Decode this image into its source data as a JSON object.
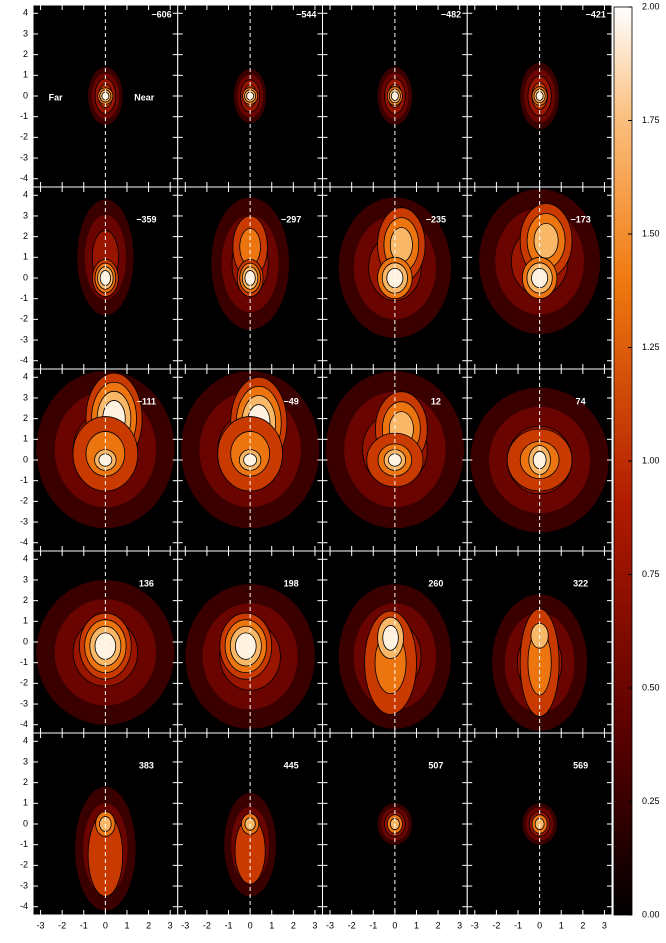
{
  "chart_data": {
    "type": "image",
    "panels": [
      "−606",
      "−544",
      "−482",
      "−421",
      "−359",
      "−297",
      "−235",
      "−173",
      "−111",
      "−49",
      "12",
      "74",
      "136",
      "198",
      "260",
      "322",
      "383",
      "445",
      "507",
      "569"
    ],
    "annotations": [
      "Far",
      "Near"
    ],
    "xlim": [
      -3.35,
      3.35
    ],
    "ylim": [
      -4.4,
      4.4
    ],
    "xticks": [
      -3,
      -2,
      -1,
      0,
      1,
      2,
      3
    ],
    "yticks": [
      -4,
      -3,
      -2,
      -1,
      0,
      1,
      2,
      3,
      4
    ],
    "colorbar": {
      "lim": [
        0,
        2
      ],
      "ticks": [
        {
          "value": 0,
          "label": "0.00"
        },
        {
          "value": 0.25,
          "label": "0.25"
        },
        {
          "value": 0.5,
          "label": "0.50"
        },
        {
          "value": 0.75,
          "label": "0.75"
        },
        {
          "value": 1,
          "label": "1.00"
        },
        {
          "value": 1.25,
          "label": "1.25"
        },
        {
          "value": 1.5,
          "label": "1.50"
        },
        {
          "value": 1.75,
          "label": "1.75"
        },
        {
          "value": 2,
          "label": "2.00"
        }
      ]
    }
  }
}
